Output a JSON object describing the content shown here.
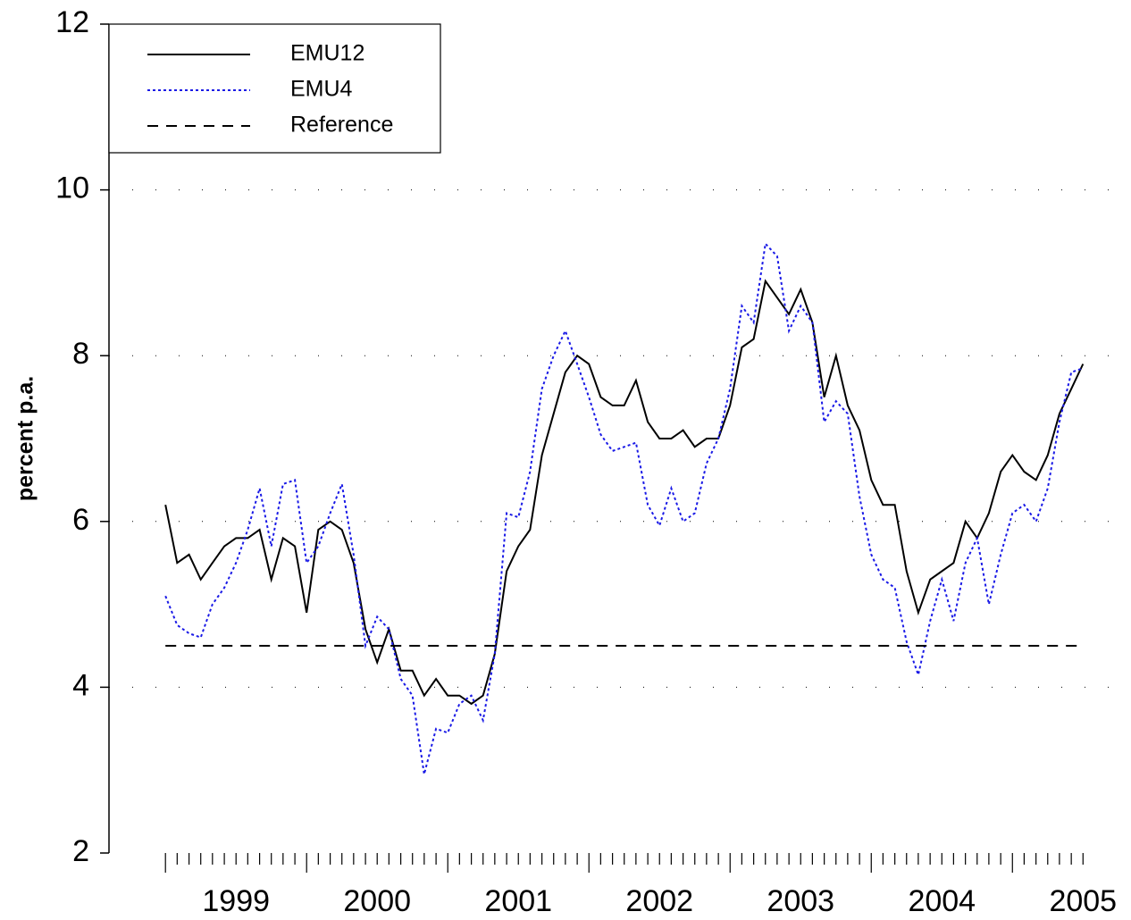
{
  "chart_data": {
    "type": "line",
    "ylabel": "percent p.a.",
    "x": [
      1999,
      1999.083,
      1999.167,
      1999.25,
      1999.333,
      1999.417,
      1999.5,
      1999.583,
      1999.667,
      1999.75,
      1999.833,
      1999.917,
      2000,
      2000.083,
      2000.167,
      2000.25,
      2000.333,
      2000.417,
      2000.5,
      2000.583,
      2000.667,
      2000.75,
      2000.833,
      2000.917,
      2001,
      2001.083,
      2001.167,
      2001.25,
      2001.333,
      2001.417,
      2001.5,
      2001.583,
      2001.667,
      2001.75,
      2001.833,
      2001.917,
      2002,
      2002.083,
      2002.167,
      2002.25,
      2002.333,
      2002.417,
      2002.5,
      2002.583,
      2002.667,
      2002.75,
      2002.833,
      2002.917,
      2003,
      2003.083,
      2003.167,
      2003.25,
      2003.333,
      2003.417,
      2003.5,
      2003.583,
      2003.667,
      2003.75,
      2003.833,
      2003.917,
      2004,
      2004.083,
      2004.167,
      2004.25,
      2004.333,
      2004.417,
      2004.5,
      2004.583,
      2004.667,
      2004.75,
      2004.833,
      2004.917,
      2005,
      2005.083,
      2005.167,
      2005.25,
      2005.333,
      2005.417,
      2005.5
    ],
    "series": [
      {
        "name": "EMU12",
        "color": "#000000",
        "style": "solid",
        "values": [
          6.2,
          5.5,
          5.6,
          5.3,
          5.5,
          5.7,
          5.8,
          5.8,
          5.9,
          5.3,
          5.8,
          5.7,
          4.9,
          5.9,
          6.0,
          5.9,
          5.5,
          4.7,
          4.3,
          4.7,
          4.2,
          4.2,
          3.9,
          4.1,
          3.9,
          3.9,
          3.8,
          3.9,
          4.4,
          5.4,
          5.7,
          5.9,
          6.8,
          7.3,
          7.8,
          8.0,
          7.9,
          7.5,
          7.4,
          7.4,
          7.7,
          7.2,
          7.0,
          7.0,
          7.1,
          6.9,
          7.0,
          7.0,
          7.4,
          8.1,
          8.2,
          8.9,
          8.7,
          8.5,
          8.8,
          8.4,
          7.5,
          8.0,
          7.4,
          7.1,
          6.5,
          6.2,
          6.2,
          5.4,
          4.9,
          5.3,
          5.4,
          5.5,
          6.0,
          5.8,
          6.1,
          6.6,
          6.8,
          6.6,
          6.5,
          6.8,
          7.3,
          7.6,
          7.9
        ]
      },
      {
        "name": "EMU4",
        "color": "#1a1ae6",
        "style": "dotted",
        "values": [
          5.1,
          4.75,
          4.65,
          4.6,
          5.0,
          5.2,
          5.5,
          5.9,
          6.4,
          5.7,
          6.45,
          6.5,
          5.5,
          5.7,
          6.1,
          6.45,
          5.6,
          4.5,
          4.85,
          4.7,
          4.1,
          3.9,
          2.95,
          3.5,
          3.45,
          3.8,
          3.9,
          3.6,
          4.4,
          6.1,
          6.05,
          6.6,
          7.6,
          8.0,
          8.3,
          7.9,
          7.5,
          7.05,
          6.85,
          6.9,
          6.95,
          6.2,
          5.95,
          6.4,
          6.0,
          6.1,
          6.7,
          7.0,
          7.6,
          8.6,
          8.4,
          9.35,
          9.2,
          8.3,
          8.6,
          8.4,
          7.2,
          7.45,
          7.3,
          6.3,
          5.6,
          5.3,
          5.2,
          4.55,
          4.15,
          4.8,
          5.3,
          4.8,
          5.5,
          5.8,
          5.0,
          5.6,
          6.1,
          6.2,
          6.0,
          6.4,
          7.2,
          7.8,
          7.85
        ]
      },
      {
        "name": "Reference",
        "color": "#000000",
        "style": "dashed",
        "values": [
          4.5,
          4.5,
          4.5,
          4.5,
          4.5,
          4.5,
          4.5,
          4.5,
          4.5,
          4.5,
          4.5,
          4.5,
          4.5,
          4.5,
          4.5,
          4.5,
          4.5,
          4.5,
          4.5,
          4.5,
          4.5,
          4.5,
          4.5,
          4.5,
          4.5,
          4.5,
          4.5,
          4.5,
          4.5,
          4.5,
          4.5,
          4.5,
          4.5,
          4.5,
          4.5,
          4.5,
          4.5,
          4.5,
          4.5,
          4.5,
          4.5,
          4.5,
          4.5,
          4.5,
          4.5,
          4.5,
          4.5,
          4.5,
          4.5,
          4.5,
          4.5,
          4.5,
          4.5,
          4.5,
          4.5,
          4.5,
          4.5,
          4.5,
          4.5,
          4.5,
          4.5,
          4.5,
          4.5,
          4.5,
          4.5,
          4.5,
          4.5,
          4.5,
          4.5,
          4.5,
          4.5,
          4.5,
          4.5,
          4.5,
          4.5,
          4.5,
          4.5,
          4.5,
          4.5
        ]
      }
    ],
    "xlim": [
      1998.6,
      2005.84
    ],
    "xticks": [
      {
        "value": 1999.5,
        "label": "1999"
      },
      {
        "value": 2000.5,
        "label": "2000"
      },
      {
        "value": 2001.5,
        "label": "2001"
      },
      {
        "value": 2002.5,
        "label": "2002"
      },
      {
        "value": 2003.5,
        "label": "2003"
      },
      {
        "value": 2004.5,
        "label": "2004"
      },
      {
        "value": 2005.5,
        "label": "2005"
      }
    ],
    "ylim": [
      2,
      12
    ],
    "yticks": [
      2,
      4,
      6,
      8,
      10,
      12
    ],
    "grid": true,
    "legend": "top-left"
  }
}
